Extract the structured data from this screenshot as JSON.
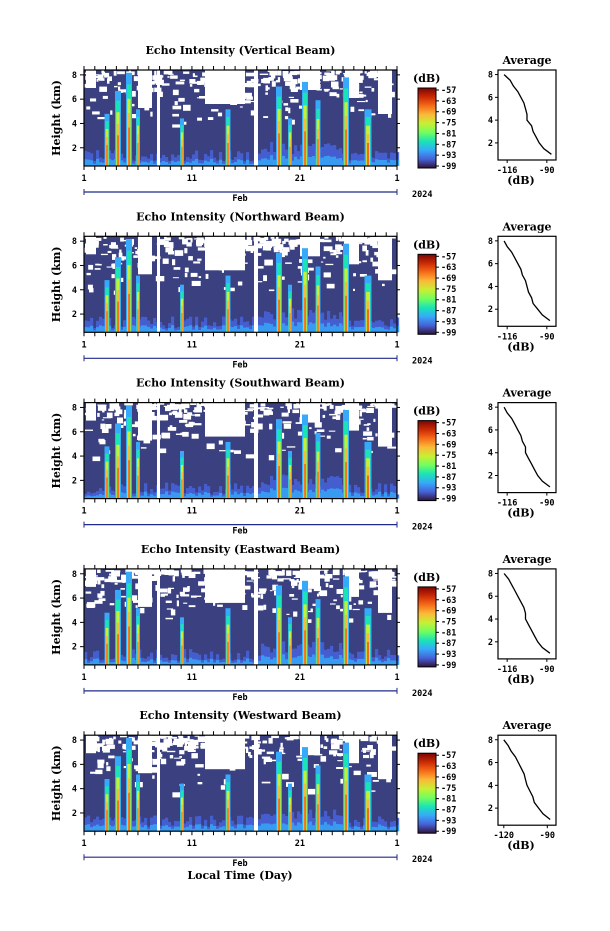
{
  "figure": {
    "xlabel": "Local Time (Day)",
    "ylabel": "Height (km)",
    "month_label": "Feb",
    "year_label": "2024",
    "x_tick_labels": [
      "1",
      "11",
      "21",
      "1"
    ],
    "y_tick_labels": [
      "2",
      "4",
      "6",
      "8"
    ],
    "colorbar_unit": "(dB)",
    "colorbar_ticks": [
      "-57",
      "-63",
      "-69",
      "-75",
      "-81",
      "-87",
      "-93",
      "-99"
    ],
    "profile_title": "Average",
    "profile_xlabel": "(dB)",
    "colors": {
      "background_noise": "#3a4080",
      "axis": "#000000",
      "colormap": [
        "#30123b",
        "#4662d7",
        "#36aaf9",
        "#1ae4b6",
        "#72fe5e",
        "#c8ef34",
        "#faba39",
        "#f66b19",
        "#ca2a04",
        "#7a0403"
      ]
    }
  },
  "chart_data": [
    {
      "type": "heatmap",
      "title": "Echo Intensity (Vertical Beam)",
      "x_range_days": [
        1,
        30
      ],
      "ylim_km": [
        0.5,
        8.4
      ],
      "clim_db": [
        -99,
        -54
      ],
      "profile": {
        "title": "Average",
        "xlabel": "(dB)",
        "x_tick_labels": [
          "-116",
          "-90"
        ],
        "xlim": [
          -122,
          -84
        ],
        "heights_km": [
          8,
          7.5,
          7,
          6.5,
          6,
          5.5,
          5,
          4.5,
          4,
          3.5,
          3,
          2.5,
          2,
          1.5,
          1
        ],
        "values_db": [
          -118,
          -114,
          -112,
          -109,
          -107,
          -105,
          -104,
          -103,
          -103,
          -100,
          -99,
          -97,
          -95,
          -92,
          -87
        ]
      }
    },
    {
      "type": "heatmap",
      "title": "Echo Intensity (Northward Beam)",
      "x_range_days": [
        1,
        30
      ],
      "ylim_km": [
        0.5,
        8.4
      ],
      "clim_db": [
        -99,
        -54
      ],
      "profile": {
        "title": "Average",
        "xlabel": "(dB)",
        "x_tick_labels": [
          "-116",
          "-90"
        ],
        "xlim": [
          -122,
          -84
        ],
        "heights_km": [
          8,
          7.5,
          7,
          6.5,
          6,
          5.5,
          5,
          4.5,
          4,
          3.5,
          3,
          2.5,
          2,
          1.5,
          1
        ],
        "values_db": [
          -118,
          -116,
          -113,
          -111,
          -109,
          -107,
          -106,
          -104,
          -103,
          -102,
          -100,
          -99,
          -96,
          -93,
          -88
        ]
      }
    },
    {
      "type": "heatmap",
      "title": "Echo Intensity (Southward Beam)",
      "x_range_days": [
        1,
        30
      ],
      "ylim_km": [
        0.5,
        8.4
      ],
      "clim_db": [
        -99,
        -54
      ],
      "profile": {
        "title": "Average",
        "xlabel": "(dB)",
        "x_tick_labels": [
          "-116",
          "-90"
        ],
        "xlim": [
          -122,
          -84
        ],
        "heights_km": [
          8,
          7.5,
          7,
          6.5,
          6,
          5.5,
          5,
          4.5,
          4,
          3.5,
          3,
          2.5,
          2,
          1.5,
          1
        ],
        "values_db": [
          -118,
          -116,
          -113,
          -111,
          -109,
          -107,
          -106,
          -104,
          -104,
          -102,
          -100,
          -98,
          -96,
          -93,
          -88
        ]
      }
    },
    {
      "type": "heatmap",
      "title": "Echo Intensity (Eastward Beam)",
      "x_range_days": [
        1,
        30
      ],
      "ylim_km": [
        0.5,
        8.4
      ],
      "clim_db": [
        -99,
        -54
      ],
      "profile": {
        "title": "Average",
        "xlabel": "(dB)",
        "x_tick_labels": [
          "-116",
          "-90"
        ],
        "xlim": [
          -122,
          -84
        ],
        "heights_km": [
          8,
          7.5,
          7,
          6.5,
          6,
          5.5,
          5,
          4.5,
          4,
          3.5,
          3,
          2.5,
          2,
          1.5,
          1
        ],
        "values_db": [
          -118,
          -115,
          -113,
          -111,
          -109,
          -107,
          -105,
          -104,
          -104,
          -102,
          -100,
          -98,
          -96,
          -93,
          -88
        ]
      }
    },
    {
      "type": "heatmap",
      "title": "Echo Intensity (Westward Beam)",
      "x_range_days": [
        1,
        30
      ],
      "ylim_km": [
        0.5,
        8.4
      ],
      "clim_db": [
        -99,
        -54
      ],
      "profile": {
        "title": "Average",
        "xlabel": "(dB)",
        "x_tick_labels": [
          "-120",
          "-90"
        ],
        "xlim": [
          -124,
          -84
        ],
        "heights_km": [
          8,
          7.5,
          7,
          6.5,
          6,
          5.5,
          5,
          4.5,
          4,
          3.5,
          3,
          2.5,
          2,
          1.5,
          1
        ],
        "values_db": [
          -120,
          -117,
          -115,
          -112,
          -110,
          -108,
          -106,
          -105,
          -104,
          -102,
          -100,
          -99,
          -96,
          -93,
          -88
        ]
      }
    }
  ]
}
